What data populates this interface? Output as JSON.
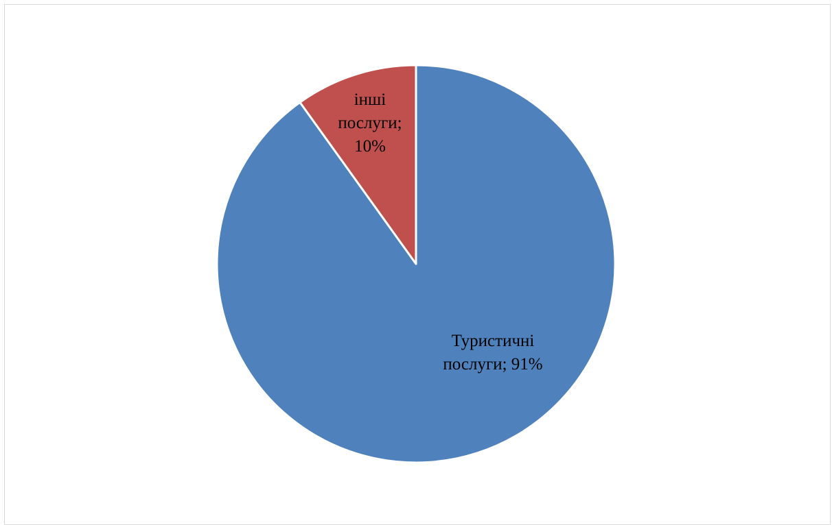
{
  "chart_data": {
    "type": "pie",
    "title": "",
    "series": [
      {
        "values": [
          91,
          10
        ],
        "categories": [
          "Туристичні послуги",
          "інші послуги"
        ]
      }
    ],
    "slices": [
      {
        "category": "Туристичні послуги",
        "value": 91,
        "label_lines": [
          "Туристичні",
          "послуги; 91%"
        ],
        "color": "#4F81BD"
      },
      {
        "category": "інші послуги",
        "value": 10,
        "label_lines": [
          "інші",
          "послуги;",
          "10%"
        ],
        "color": "#C0504D"
      }
    ],
    "start_angle_deg": 0,
    "direction": "clockwise",
    "legend": "none"
  }
}
